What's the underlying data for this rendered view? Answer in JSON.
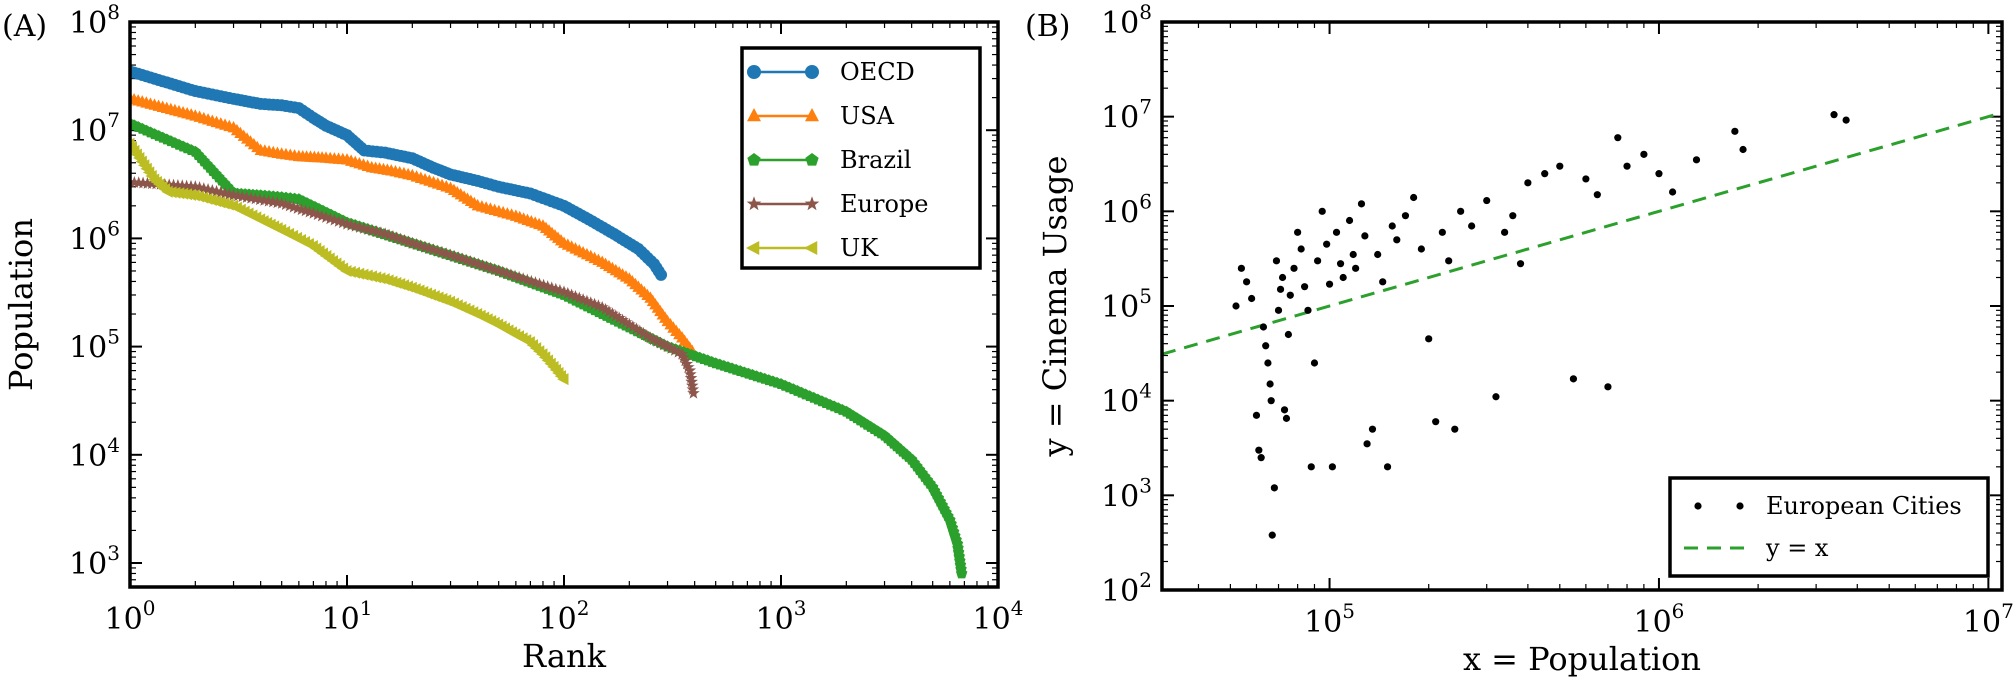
{
  "chart_data": [
    {
      "panel_label": "(A)",
      "type": "line",
      "xlabel": "Rank",
      "ylabel": "Population",
      "xscale": "log",
      "yscale": "log",
      "xlim": [
        1,
        10000
      ],
      "ylim": [
        600,
        100000000
      ],
      "xticks": [
        {
          "v": 1,
          "base": "10",
          "exp": "0"
        },
        {
          "v": 10,
          "base": "10",
          "exp": "1"
        },
        {
          "v": 100,
          "base": "10",
          "exp": "2"
        },
        {
          "v": 1000,
          "base": "10",
          "exp": "3"
        },
        {
          "v": 10000,
          "base": "10",
          "exp": "4"
        }
      ],
      "yticks": [
        {
          "v": 1000,
          "base": "10",
          "exp": "3"
        },
        {
          "v": 10000,
          "base": "10",
          "exp": "4"
        },
        {
          "v": 100000,
          "base": "10",
          "exp": "5"
        },
        {
          "v": 1000000,
          "base": "10",
          "exp": "6"
        },
        {
          "v": 10000000,
          "base": "10",
          "exp": "7"
        },
        {
          "v": 100000000,
          "base": "10",
          "exp": "8"
        }
      ],
      "legend_position": "top-right",
      "series": [
        {
          "name": "OECD",
          "color": "#1f77b4",
          "marker": "circle",
          "points": [
            [
              1,
              35000000
            ],
            [
              2,
              23000000
            ],
            [
              3,
              19500000
            ],
            [
              4,
              17500000
            ],
            [
              5,
              17000000
            ],
            [
              6,
              16000000
            ],
            [
              7,
              13000000
            ],
            [
              8,
              11000000
            ],
            [
              10,
              9000000
            ],
            [
              12,
              6500000
            ],
            [
              15,
              6200000
            ],
            [
              20,
              5500000
            ],
            [
              25,
              4500000
            ],
            [
              30,
              3900000
            ],
            [
              40,
              3400000
            ],
            [
              50,
              3000000
            ],
            [
              70,
              2600000
            ],
            [
              100,
              2000000
            ],
            [
              130,
              1500000
            ],
            [
              170,
              1100000
            ],
            [
              220,
              800000
            ],
            [
              260,
              580000
            ],
            [
              280,
              460000
            ]
          ]
        },
        {
          "name": "USA",
          "color": "#ff7f0e",
          "marker": "triangle-up",
          "points": [
            [
              1,
              19500000
            ],
            [
              2,
              13500000
            ],
            [
              3,
              10500000
            ],
            [
              4,
              6500000
            ],
            [
              5,
              6000000
            ],
            [
              6,
              5700000
            ],
            [
              8,
              5500000
            ],
            [
              10,
              5300000
            ],
            [
              13,
              4500000
            ],
            [
              16,
              4200000
            ],
            [
              20,
              3800000
            ],
            [
              30,
              2900000
            ],
            [
              40,
              2000000
            ],
            [
              60,
              1600000
            ],
            [
              80,
              1300000
            ],
            [
              100,
              900000
            ],
            [
              150,
              600000
            ],
            [
              200,
              420000
            ],
            [
              250,
              280000
            ],
            [
              300,
              170000
            ],
            [
              350,
              120000
            ],
            [
              390,
              90000
            ]
          ]
        },
        {
          "name": "Brazil",
          "color": "#2ca02c",
          "marker": "pentagon",
          "points": [
            [
              1,
              11500000
            ],
            [
              2,
              6300000
            ],
            [
              3,
              2600000
            ],
            [
              4,
              2500000
            ],
            [
              5,
              2400000
            ],
            [
              6,
              2300000
            ],
            [
              10,
              1400000
            ],
            [
              20,
              900000
            ],
            [
              50,
              500000
            ],
            [
              100,
              300000
            ],
            [
              200,
              150000
            ],
            [
              300,
              100000
            ],
            [
              500,
              70000
            ],
            [
              1000,
              45000
            ],
            [
              2000,
              25000
            ],
            [
              3000,
              15000
            ],
            [
              4000,
              9000
            ],
            [
              5000,
              5000
            ],
            [
              6000,
              2500
            ],
            [
              6500,
              1500
            ],
            [
              6800,
              800
            ]
          ]
        },
        {
          "name": "Europe",
          "color": "#8c564b",
          "marker": "star",
          "points": [
            [
              1,
              3300000
            ],
            [
              2,
              3000000
            ],
            [
              3,
              2500000
            ],
            [
              5,
              2100000
            ],
            [
              7,
              1700000
            ],
            [
              10,
              1350000
            ],
            [
              15,
              1100000
            ],
            [
              20,
              900000
            ],
            [
              30,
              700000
            ],
            [
              50,
              500000
            ],
            [
              100,
              320000
            ],
            [
              150,
              230000
            ],
            [
              200,
              160000
            ],
            [
              250,
              120000
            ],
            [
              300,
              100000
            ],
            [
              350,
              85000
            ],
            [
              380,
              60000
            ],
            [
              395,
              37000
            ]
          ]
        },
        {
          "name": "UK",
          "color": "#bcbd22",
          "marker": "triangle-left",
          "points": [
            [
              1,
              7500000
            ],
            [
              1.3,
              3500000
            ],
            [
              1.5,
              2700000
            ],
            [
              2,
              2500000
            ],
            [
              3,
              2000000
            ],
            [
              4,
              1500000
            ],
            [
              5,
              1200000
            ],
            [
              7,
              850000
            ],
            [
              10,
              500000
            ],
            [
              15,
              420000
            ],
            [
              20,
              350000
            ],
            [
              30,
              260000
            ],
            [
              40,
              200000
            ],
            [
              50,
              160000
            ],
            [
              60,
              130000
            ],
            [
              70,
              110000
            ],
            [
              80,
              85000
            ],
            [
              90,
              65000
            ],
            [
              100,
              50000
            ]
          ]
        }
      ]
    },
    {
      "panel_label": "(B)",
      "type": "scatter",
      "xlabel": "x = Population",
      "ylabel": "y = Cinema Usage",
      "xscale": "log",
      "yscale": "log",
      "xlim": [
        31000,
        11000000
      ],
      "ylim": [
        100,
        100000000
      ],
      "xticks": [
        {
          "v": 100000,
          "base": "10",
          "exp": "5"
        },
        {
          "v": 1000000,
          "base": "10",
          "exp": "6"
        },
        {
          "v": 10000000,
          "base": "10",
          "exp": "7"
        }
      ],
      "yticks": [
        {
          "v": 100,
          "base": "10",
          "exp": "2"
        },
        {
          "v": 1000,
          "base": "10",
          "exp": "3"
        },
        {
          "v": 10000,
          "base": "10",
          "exp": "4"
        },
        {
          "v": 100000,
          "base": "10",
          "exp": "5"
        },
        {
          "v": 1000000,
          "base": "10",
          "exp": "6"
        },
        {
          "v": 10000000,
          "base": "10",
          "exp": "7"
        },
        {
          "v": 100000000,
          "base": "10",
          "exp": "8"
        }
      ],
      "legend_position": "bottom-right",
      "reference_line": {
        "name": "y = x",
        "color": "#2ca02c",
        "style": "dashed"
      },
      "scatter_series": {
        "name": "European Cities",
        "color": "#000000",
        "points": [
          [
            52000,
            100000
          ],
          [
            54000,
            250000
          ],
          [
            56000,
            180000
          ],
          [
            58000,
            120000
          ],
          [
            60000,
            7000
          ],
          [
            61000,
            3000
          ],
          [
            62000,
            2500
          ],
          [
            63000,
            60000
          ],
          [
            64000,
            38000
          ],
          [
            65000,
            25000
          ],
          [
            66000,
            15000
          ],
          [
            66500,
            10000
          ],
          [
            67000,
            380
          ],
          [
            68000,
            1200
          ],
          [
            69000,
            300000
          ],
          [
            70000,
            90000
          ],
          [
            71000,
            150000
          ],
          [
            72000,
            200000
          ],
          [
            73000,
            8000
          ],
          [
            74000,
            6500
          ],
          [
            75000,
            50000
          ],
          [
            76000,
            130000
          ],
          [
            78000,
            250000
          ],
          [
            80000,
            600000
          ],
          [
            82000,
            400000
          ],
          [
            84000,
            160000
          ],
          [
            86000,
            90000
          ],
          [
            88000,
            2000
          ],
          [
            90000,
            25000
          ],
          [
            92000,
            300000
          ],
          [
            95000,
            1000000
          ],
          [
            98000,
            450000
          ],
          [
            100000,
            170000
          ],
          [
            102000,
            2000
          ],
          [
            105000,
            600000
          ],
          [
            108000,
            280000
          ],
          [
            110000,
            200000
          ],
          [
            115000,
            800000
          ],
          [
            118000,
            350000
          ],
          [
            120000,
            250000
          ],
          [
            125000,
            1200000
          ],
          [
            128000,
            550000
          ],
          [
            130000,
            3500
          ],
          [
            135000,
            5000
          ],
          [
            140000,
            350000
          ],
          [
            145000,
            180000
          ],
          [
            150000,
            2000
          ],
          [
            155000,
            700000
          ],
          [
            160000,
            500000
          ],
          [
            170000,
            900000
          ],
          [
            180000,
            1400000
          ],
          [
            190000,
            400000
          ],
          [
            200000,
            45000
          ],
          [
            210000,
            6000
          ],
          [
            220000,
            600000
          ],
          [
            230000,
            300000
          ],
          [
            240000,
            5000
          ],
          [
            250000,
            1000000
          ],
          [
            270000,
            700000
          ],
          [
            300000,
            1300000
          ],
          [
            320000,
            11000
          ],
          [
            340000,
            600000
          ],
          [
            360000,
            900000
          ],
          [
            380000,
            280000
          ],
          [
            400000,
            2000000
          ],
          [
            450000,
            2500000
          ],
          [
            500000,
            3000000
          ],
          [
            550000,
            17000
          ],
          [
            600000,
            2200000
          ],
          [
            650000,
            1500000
          ],
          [
            700000,
            14000
          ],
          [
            750000,
            6000000
          ],
          [
            800000,
            3000000
          ],
          [
            900000,
            4000000
          ],
          [
            1000000,
            2500000
          ],
          [
            1100000,
            1600000
          ],
          [
            1300000,
            3500000
          ],
          [
            1700000,
            7000000
          ],
          [
            1800000,
            4500000
          ],
          [
            3400000,
            10500000
          ],
          [
            3700000,
            9200000
          ]
        ]
      }
    }
  ]
}
